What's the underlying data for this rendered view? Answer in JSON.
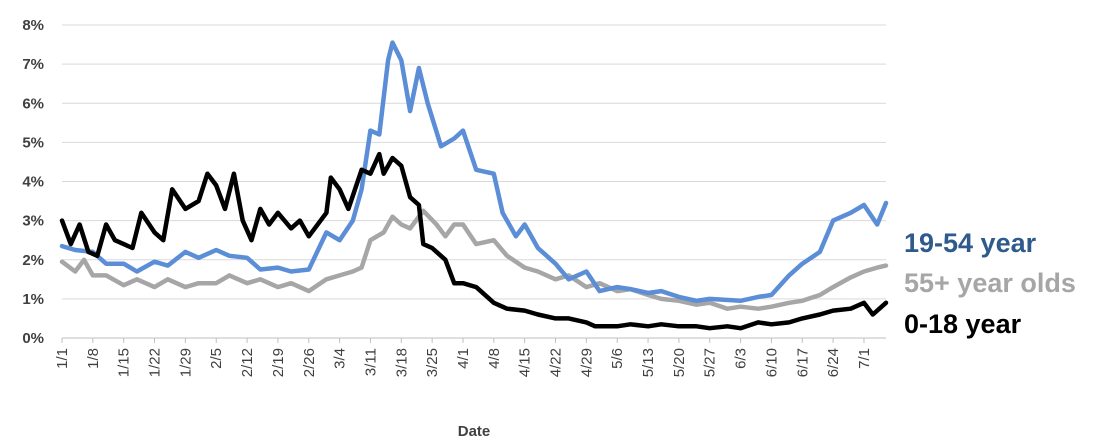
{
  "chart_data": {
    "type": "line",
    "title": "",
    "xlabel": "Date",
    "ylabel": "",
    "ylim": [
      0,
      8
    ],
    "y_ticks": [
      "0%",
      "1%",
      "2%",
      "3%",
      "4%",
      "5%",
      "6%",
      "7%",
      "8%"
    ],
    "x_tick_labels": [
      "1/1",
      "1/8",
      "1/15",
      "1/22",
      "1/29",
      "2/5",
      "2/12",
      "2/19",
      "2/26",
      "3/4",
      "3/11",
      "3/18",
      "3/25",
      "4/1",
      "4/8",
      "4/15",
      "4/22",
      "4/29",
      "5/6",
      "5/13",
      "5/20",
      "5/27",
      "6/3",
      "6/10",
      "6/17",
      "6/24",
      "7/1"
    ],
    "grid": "horizontal",
    "legend": "right (labels beside line ends)",
    "x_start": "1/1",
    "x_end": "7/6",
    "series": [
      {
        "name": "19-54 year",
        "color": "#5B8ED6",
        "points": [
          [
            "1/1",
            2.35
          ],
          [
            "1/4",
            2.25
          ],
          [
            "1/8",
            2.2
          ],
          [
            "1/11",
            1.9
          ],
          [
            "1/15",
            1.9
          ],
          [
            "1/18",
            1.7
          ],
          [
            "1/22",
            1.95
          ],
          [
            "1/25",
            1.85
          ],
          [
            "1/29",
            2.2
          ],
          [
            "2/1",
            2.05
          ],
          [
            "2/5",
            2.25
          ],
          [
            "2/8",
            2.1
          ],
          [
            "2/12",
            2.05
          ],
          [
            "2/15",
            1.75
          ],
          [
            "2/19",
            1.8
          ],
          [
            "2/22",
            1.7
          ],
          [
            "2/26",
            1.75
          ],
          [
            "3/1",
            2.7
          ],
          [
            "3/4",
            2.5
          ],
          [
            "3/7",
            3.0
          ],
          [
            "3/9",
            3.8
          ],
          [
            "3/11",
            5.3
          ],
          [
            "3/13",
            5.2
          ],
          [
            "3/15",
            7.1
          ],
          [
            "3/16",
            7.55
          ],
          [
            "3/18",
            7.1
          ],
          [
            "3/20",
            5.8
          ],
          [
            "3/22",
            6.9
          ],
          [
            "3/24",
            6.0
          ],
          [
            "3/27",
            4.9
          ],
          [
            "3/30",
            5.1
          ],
          [
            "4/1",
            5.3
          ],
          [
            "4/4",
            4.3
          ],
          [
            "4/8",
            4.2
          ],
          [
            "4/10",
            3.2
          ],
          [
            "4/13",
            2.6
          ],
          [
            "4/15",
            2.9
          ],
          [
            "4/18",
            2.3
          ],
          [
            "4/22",
            1.9
          ],
          [
            "4/25",
            1.5
          ],
          [
            "4/29",
            1.7
          ],
          [
            "5/2",
            1.2
          ],
          [
            "5/6",
            1.3
          ],
          [
            "5/9",
            1.25
          ],
          [
            "5/13",
            1.15
          ],
          [
            "5/16",
            1.2
          ],
          [
            "5/20",
            1.05
          ],
          [
            "5/24",
            0.95
          ],
          [
            "5/27",
            1.0
          ],
          [
            "6/3",
            0.95
          ],
          [
            "6/7",
            1.05
          ],
          [
            "6/10",
            1.1
          ],
          [
            "6/14",
            1.6
          ],
          [
            "6/17",
            1.9
          ],
          [
            "6/21",
            2.2
          ],
          [
            "6/24",
            3.0
          ],
          [
            "6/28",
            3.2
          ],
          [
            "7/1",
            3.4
          ],
          [
            "7/4",
            2.9
          ],
          [
            "7/6",
            3.45
          ]
        ]
      },
      {
        "name": "55+ year olds",
        "color": "#A6A6A6",
        "points": [
          [
            "1/1",
            1.95
          ],
          [
            "1/4",
            1.7
          ],
          [
            "1/6",
            2.0
          ],
          [
            "1/8",
            1.6
          ],
          [
            "1/11",
            1.6
          ],
          [
            "1/15",
            1.35
          ],
          [
            "1/18",
            1.5
          ],
          [
            "1/22",
            1.3
          ],
          [
            "1/25",
            1.5
          ],
          [
            "1/29",
            1.3
          ],
          [
            "2/1",
            1.4
          ],
          [
            "2/5",
            1.4
          ],
          [
            "2/8",
            1.6
          ],
          [
            "2/12",
            1.4
          ],
          [
            "2/15",
            1.5
          ],
          [
            "2/19",
            1.3
          ],
          [
            "2/22",
            1.4
          ],
          [
            "2/26",
            1.2
          ],
          [
            "3/1",
            1.5
          ],
          [
            "3/4",
            1.6
          ],
          [
            "3/7",
            1.7
          ],
          [
            "3/9",
            1.8
          ],
          [
            "3/11",
            2.5
          ],
          [
            "3/14",
            2.7
          ],
          [
            "3/16",
            3.1
          ],
          [
            "3/18",
            2.9
          ],
          [
            "3/20",
            2.8
          ],
          [
            "3/23",
            3.25
          ],
          [
            "3/26",
            2.9
          ],
          [
            "3/28",
            2.6
          ],
          [
            "3/30",
            2.9
          ],
          [
            "4/1",
            2.9
          ],
          [
            "4/4",
            2.4
          ],
          [
            "4/8",
            2.5
          ],
          [
            "4/11",
            2.1
          ],
          [
            "4/15",
            1.8
          ],
          [
            "4/18",
            1.7
          ],
          [
            "4/22",
            1.5
          ],
          [
            "4/25",
            1.6
          ],
          [
            "4/29",
            1.3
          ],
          [
            "5/2",
            1.4
          ],
          [
            "5/6",
            1.2
          ],
          [
            "5/9",
            1.25
          ],
          [
            "5/13",
            1.1
          ],
          [
            "5/16",
            1.0
          ],
          [
            "5/20",
            0.95
          ],
          [
            "5/24",
            0.85
          ],
          [
            "5/27",
            0.9
          ],
          [
            "5/31",
            0.75
          ],
          [
            "6/3",
            0.8
          ],
          [
            "6/7",
            0.75
          ],
          [
            "6/10",
            0.8
          ],
          [
            "6/14",
            0.9
          ],
          [
            "6/17",
            0.95
          ],
          [
            "6/21",
            1.1
          ],
          [
            "6/24",
            1.3
          ],
          [
            "6/28",
            1.55
          ],
          [
            "7/1",
            1.7
          ],
          [
            "7/4",
            1.8
          ],
          [
            "7/6",
            1.85
          ]
        ]
      },
      {
        "name": "0-18 year",
        "color": "#000000",
        "points": [
          [
            "1/1",
            3.0
          ],
          [
            "1/3",
            2.4
          ],
          [
            "1/5",
            2.9
          ],
          [
            "1/7",
            2.2
          ],
          [
            "1/9",
            2.1
          ],
          [
            "1/11",
            2.9
          ],
          [
            "1/13",
            2.5
          ],
          [
            "1/15",
            2.4
          ],
          [
            "1/17",
            2.3
          ],
          [
            "1/19",
            3.2
          ],
          [
            "1/22",
            2.7
          ],
          [
            "1/24",
            2.5
          ],
          [
            "1/26",
            3.8
          ],
          [
            "1/29",
            3.3
          ],
          [
            "2/1",
            3.5
          ],
          [
            "2/3",
            4.2
          ],
          [
            "2/5",
            3.9
          ],
          [
            "2/7",
            3.3
          ],
          [
            "2/9",
            4.2
          ],
          [
            "2/11",
            3.0
          ],
          [
            "2/13",
            2.5
          ],
          [
            "2/15",
            3.3
          ],
          [
            "2/17",
            2.9
          ],
          [
            "2/19",
            3.2
          ],
          [
            "2/22",
            2.8
          ],
          [
            "2/24",
            3.0
          ],
          [
            "2/26",
            2.6
          ],
          [
            "3/1",
            3.2
          ],
          [
            "3/2",
            4.1
          ],
          [
            "3/4",
            3.8
          ],
          [
            "3/6",
            3.3
          ],
          [
            "3/9",
            4.3
          ],
          [
            "3/11",
            4.2
          ],
          [
            "3/13",
            4.7
          ],
          [
            "3/14",
            4.2
          ],
          [
            "3/16",
            4.6
          ],
          [
            "3/18",
            4.4
          ],
          [
            "3/20",
            3.6
          ],
          [
            "3/22",
            3.4
          ],
          [
            "3/23",
            2.4
          ],
          [
            "3/25",
            2.3
          ],
          [
            "3/28",
            2.0
          ],
          [
            "3/30",
            1.4
          ],
          [
            "4/1",
            1.4
          ],
          [
            "4/4",
            1.3
          ],
          [
            "4/8",
            0.9
          ],
          [
            "4/11",
            0.75
          ],
          [
            "4/15",
            0.7
          ],
          [
            "4/18",
            0.6
          ],
          [
            "4/22",
            0.5
          ],
          [
            "4/25",
            0.5
          ],
          [
            "4/29",
            0.4
          ],
          [
            "5/1",
            0.3
          ],
          [
            "5/6",
            0.3
          ],
          [
            "5/9",
            0.35
          ],
          [
            "5/13",
            0.3
          ],
          [
            "5/16",
            0.35
          ],
          [
            "5/20",
            0.3
          ],
          [
            "5/24",
            0.3
          ],
          [
            "5/27",
            0.25
          ],
          [
            "5/31",
            0.3
          ],
          [
            "6/3",
            0.25
          ],
          [
            "6/7",
            0.4
          ],
          [
            "6/10",
            0.35
          ],
          [
            "6/14",
            0.4
          ],
          [
            "6/17",
            0.5
          ],
          [
            "6/21",
            0.6
          ],
          [
            "6/24",
            0.7
          ],
          [
            "6/28",
            0.75
          ],
          [
            "7/1",
            0.9
          ],
          [
            "7/3",
            0.6
          ],
          [
            "7/6",
            0.9
          ]
        ]
      }
    ]
  }
}
